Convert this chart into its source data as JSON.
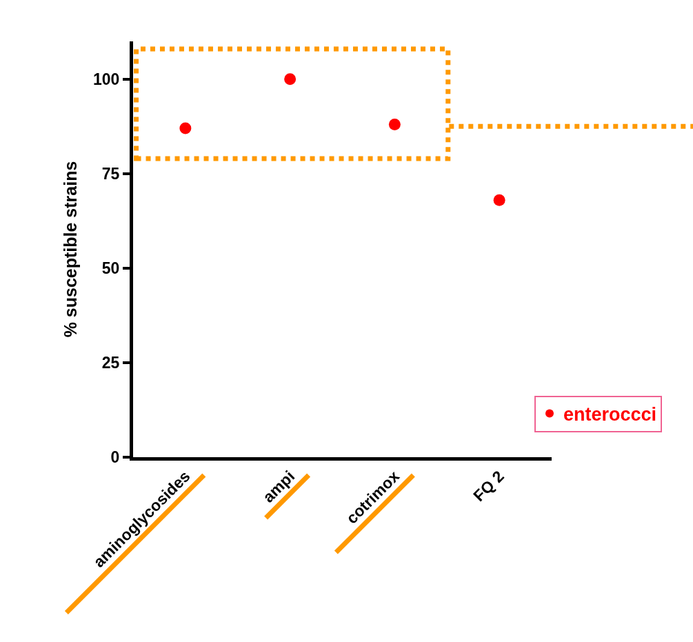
{
  "chart_data": {
    "type": "scatter",
    "categories": [
      "aminoglycosides",
      "ampi",
      "cotrimox",
      "FQ 2"
    ],
    "series": [
      {
        "name": "enteroccci",
        "color": "#ff0000",
        "values": [
          87,
          100,
          88,
          68
        ]
      }
    ],
    "ylabel": "% susceptible strains",
    "ylim": [
      0,
      110
    ],
    "yticks": [
      0,
      25,
      50,
      75,
      100
    ],
    "legend": "bottom right",
    "marker": "circle",
    "ref_lines": [
      {
        "axis": "y",
        "value": 87.5,
        "color": "#ff9900",
        "line_style": "dotted"
      }
    ]
  }
}
